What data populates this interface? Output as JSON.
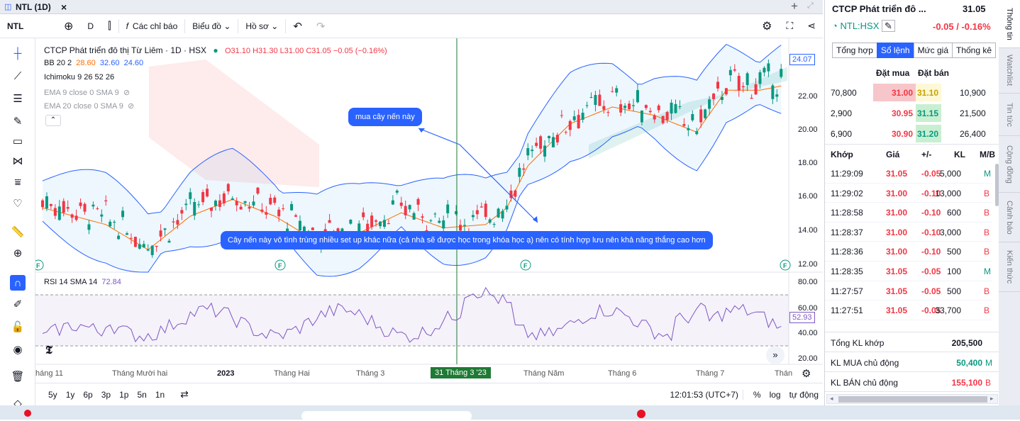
{
  "tab": {
    "title": "NTL (1D)",
    "close": "×",
    "plus": "+"
  },
  "toolbar": {
    "symbol": "NTL",
    "interval": "D",
    "indicators": "Các chỉ báo",
    "chart_type": "Biểu đồ",
    "profile": "Hồ sơ"
  },
  "legend": {
    "name": "CTCP Phát triển đô thị Từ Liêm · 1D · HSX",
    "ohlc": "O31.10 H31.30 L31.00 C31.05 −0.05 (−0.16%)",
    "bb_label": "BB 20 2",
    "bb_vals": [
      "28.60",
      "32.60",
      "24.60"
    ],
    "ichimoku": "Ichimoku 9 26 52 26",
    "ema9": "EMA 9 close 0 SMA 9",
    "ema20": "EMA 20 close 0 SMA 9",
    "rsi_label": "RSI 14 SMA 14",
    "rsi_val": "72.84"
  },
  "notes": {
    "buy": "mua cây nến này",
    "reason": "Cây nến này vô tình trùng nhiều set up khác nữa (cả nhà sẽ được học trong khóa học ạ) nên có tính hợp lưu nên khả năng thắng cao hơn"
  },
  "price_axis": {
    "ticks": [
      "22.00",
      "20.00",
      "18.00",
      "16.00",
      "14.00",
      "12.00"
    ],
    "last": "24.07"
  },
  "rsi_axis": {
    "ticks": [
      "80.00",
      "60.00",
      "40.00",
      "20.00"
    ],
    "last": "52.93"
  },
  "time_axis": {
    "labels": [
      "háng 11",
      "Tháng Mười hai",
      "2023",
      "Tháng Hai",
      "Tháng 3",
      "Tháng Năm",
      "Tháng 6",
      "Tháng 7",
      "Thán"
    ],
    "cursor": "31 Tháng 3 '23"
  },
  "bottom": {
    "ranges": [
      "5y",
      "1y",
      "6p",
      "3p",
      "1p",
      "5n",
      "1n"
    ],
    "time": "12:01:53 (UTC+7)",
    "pct": "%",
    "log": "log",
    "auto": "tự động"
  },
  "right": {
    "company": "CTCP Phát triển đô ...",
    "price": "31.05",
    "ticker": "NTL:HSX",
    "change": "-0.05 / -0.16%",
    "tabs": [
      "Tổng hợp",
      "Sổ lệnh",
      "Mức giá",
      "Thống kê"
    ],
    "ob_head": [
      "Đặt mua",
      "Đặt bán"
    ],
    "orderbook": [
      [
        "70,800",
        "31.00",
        "31.10",
        "10,900"
      ],
      [
        "2,900",
        "30.95",
        "31.15",
        "21,500"
      ],
      [
        "6,900",
        "30.90",
        "31.20",
        "26,400"
      ]
    ],
    "trade_head": [
      "Khớp",
      "Giá",
      "+/-",
      "KL",
      "M/B"
    ],
    "trades": [
      [
        "11:29:09",
        "31.05",
        "-0.05",
        "5,000",
        "M"
      ],
      [
        "11:29:02",
        "31.00",
        "-0.10",
        "13,000",
        "B"
      ],
      [
        "11:28:58",
        "31.00",
        "-0.10",
        "600",
        "B"
      ],
      [
        "11:28:37",
        "31.00",
        "-0.10",
        "3,000",
        "B"
      ],
      [
        "11:28:36",
        "31.00",
        "-0.10",
        "500",
        "B"
      ],
      [
        "11:28:35",
        "31.05",
        "-0.05",
        "100",
        "M"
      ],
      [
        "11:27:57",
        "31.05",
        "-0.05",
        "500",
        "B"
      ],
      [
        "11:27:51",
        "31.05",
        "-0.05",
        "33,700",
        "B"
      ]
    ],
    "summary": [
      [
        "Tổng KL khớp",
        "205,500",
        ""
      ],
      [
        "KL MUA chủ động",
        "50,400",
        "M"
      ],
      [
        "KL BÁN chủ động",
        "155,100",
        "B"
      ]
    ]
  },
  "vtabs": [
    "Thông tin",
    "Watchlist",
    "Tin tức",
    "Cộng đồng",
    "Cảnh báo",
    "Kiến thức"
  ],
  "colors": {
    "up": "#089981",
    "down": "#f23645",
    "accent": "#2962ff",
    "bb": "#2962ff",
    "ema": "#ff6d00",
    "rsi": "#7e57c2"
  }
}
